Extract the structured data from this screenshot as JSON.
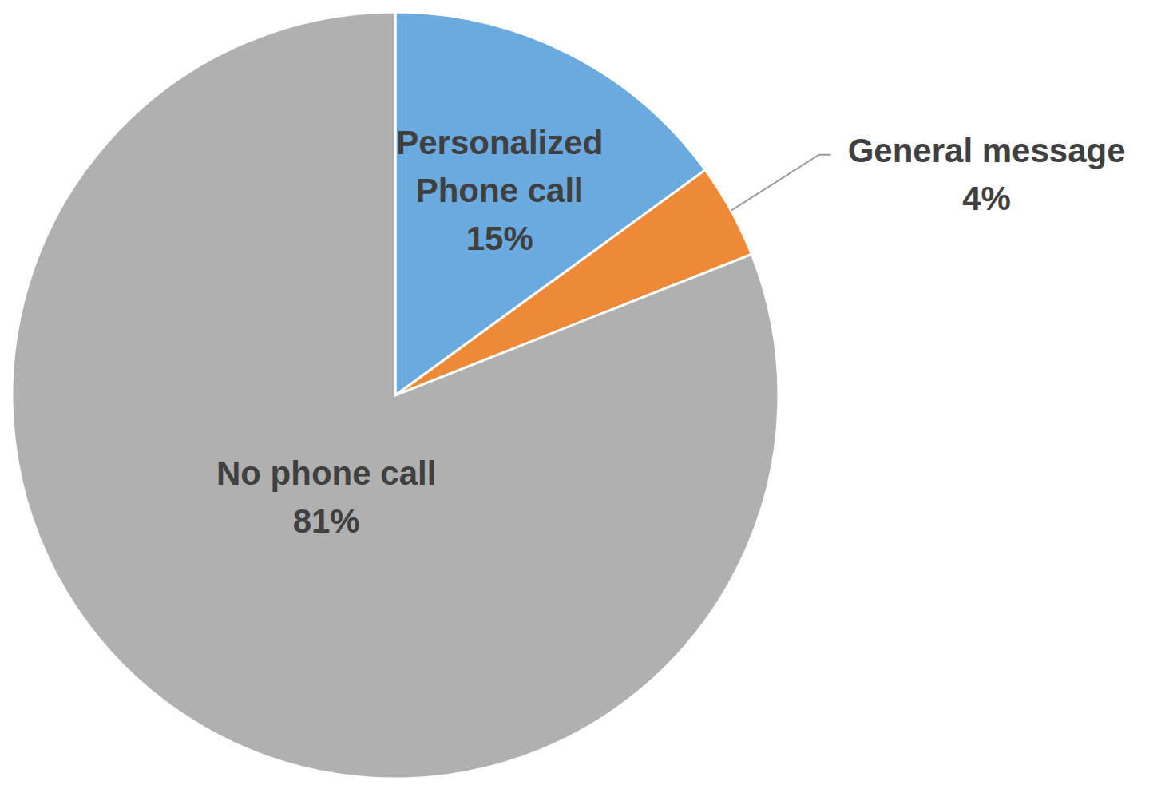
{
  "chart_data": {
    "type": "pie",
    "categories": [
      "Personalized Phone call",
      "General message",
      "No phone call"
    ],
    "values": [
      15,
      4,
      81
    ],
    "value_labels": [
      "15%",
      "4%",
      "81%"
    ],
    "colors": [
      "#6aaade",
      "#ee8a37",
      "#b0b0b0"
    ],
    "data_labels": true
  }
}
